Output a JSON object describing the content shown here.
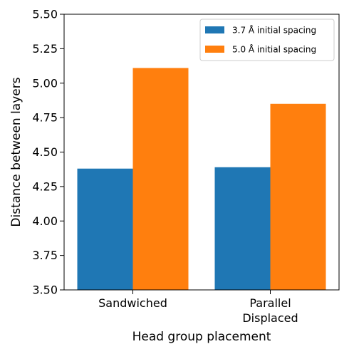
{
  "chart_data": {
    "type": "bar",
    "categories": [
      [
        "Sandwiched"
      ],
      [
        "Parallel",
        "Displaced"
      ]
    ],
    "series": [
      {
        "name": "3.7 Å initial spacing",
        "values": [
          4.38,
          4.39
        ],
        "color": "#1f77b4"
      },
      {
        "name": "5.0 Å initial spacing",
        "values": [
          5.11,
          4.85
        ],
        "color": "#ff7f0e"
      }
    ],
    "xlabel": "Head group placement",
    "ylabel": "Distance between layers",
    "ylim": [
      3.5,
      5.5
    ],
    "yticks": [
      "3.50",
      "3.75",
      "4.00",
      "4.25",
      "4.50",
      "4.75",
      "5.00",
      "5.25",
      "5.50"
    ],
    "grid": false,
    "legend": "top-right"
  }
}
